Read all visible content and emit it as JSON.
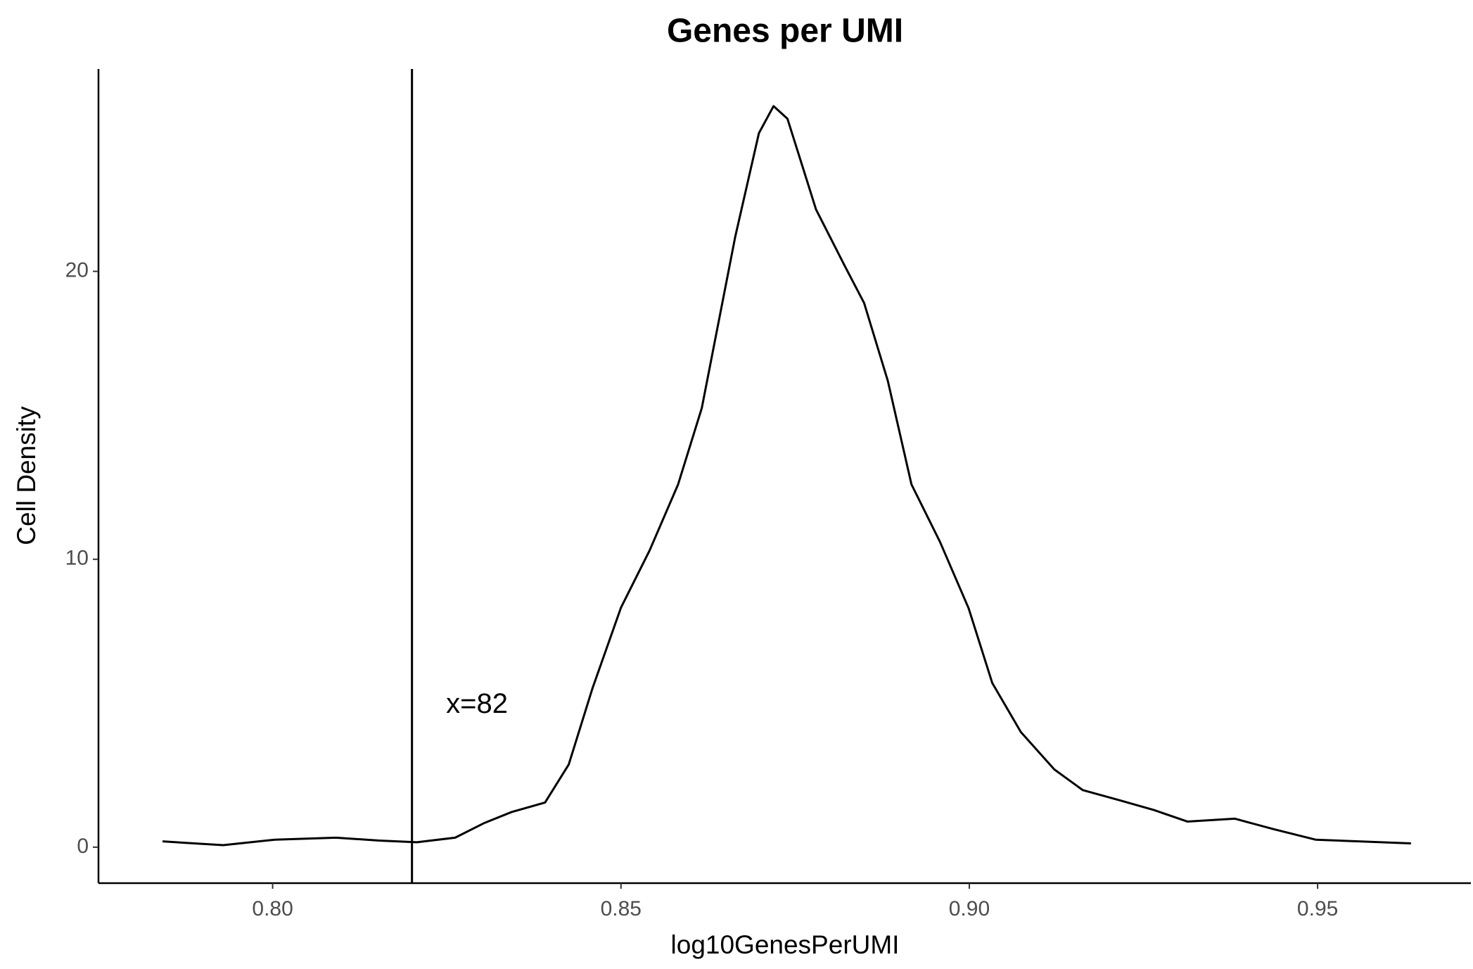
{
  "chart_data": {
    "type": "line",
    "title": "Genes per UMI",
    "x_label": "log10GenesPerUMI",
    "y_label": "Cell Density",
    "xlim": [
      0.775,
      0.972
    ],
    "ylim": [
      -1.25,
      27.03
    ],
    "xticks": [
      {
        "value": 0.8,
        "label": "0.80"
      },
      0.85,
      {
        "value": 0.9,
        "label": "0.90"
      },
      0.95
    ],
    "yticks": [
      0,
      10,
      20
    ],
    "grid": false,
    "vline": 0.82,
    "annotations": [
      {
        "text": "x=82",
        "x": 0.8249,
        "y": 4.92
      }
    ],
    "series": [
      {
        "color": "#000000",
        "x": [
          0.7842,
          0.7929,
          0.8003,
          0.8091,
          0.8153,
          0.8207,
          0.8262,
          0.8303,
          0.8343,
          0.8391,
          0.8425,
          0.8459,
          0.85,
          0.8541,
          0.8582,
          0.8616,
          0.8664,
          0.8698,
          0.8719,
          0.8739,
          0.878,
          0.8821,
          0.8849,
          0.8883,
          0.8917,
          0.8958,
          0.8999,
          0.9033,
          0.9074,
          0.9122,
          0.9163,
          0.9217,
          0.9265,
          0.9313,
          0.9381,
          0.9436,
          0.9497,
          0.9559,
          0.9634
        ],
        "values": [
          0.2,
          0.07,
          0.26,
          0.33,
          0.23,
          0.17,
          0.33,
          0.83,
          1.22,
          1.55,
          2.87,
          5.51,
          8.32,
          10.3,
          12.6,
          15.25,
          21.2,
          24.8,
          25.74,
          25.3,
          22.15,
          20.2,
          18.9,
          16.2,
          12.6,
          10.6,
          8.3,
          5.7,
          4.0,
          2.7,
          1.98,
          1.62,
          1.29,
          0.89,
          0.99,
          0.63,
          0.26,
          0.2,
          0.13
        ]
      }
    ]
  }
}
